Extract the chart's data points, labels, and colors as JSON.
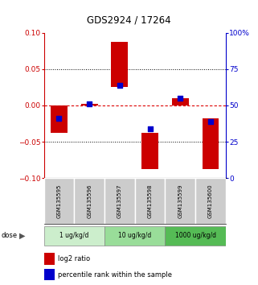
{
  "title": "GDS2924 / 17264",
  "samples": [
    "GSM135595",
    "GSM135596",
    "GSM135597",
    "GSM135598",
    "GSM135599",
    "GSM135600"
  ],
  "bar_bottoms": [
    0,
    0,
    0.025,
    -0.088,
    0,
    -0.088
  ],
  "bar_tops": [
    -0.038,
    0.002,
    0.088,
    -0.038,
    0.01,
    -0.018
  ],
  "blue_y": [
    -0.018,
    0.002,
    0.028,
    -0.032,
    0.01,
    -0.022
  ],
  "ylim_left": [
    -0.1,
    0.1
  ],
  "ylim_right": [
    0,
    100
  ],
  "yticks_left": [
    -0.1,
    -0.05,
    0,
    0.05,
    0.1
  ],
  "yticks_right": [
    0,
    25,
    50,
    75,
    100
  ],
  "hlines_dotted": [
    0.05,
    -0.05
  ],
  "hline_zero_color": "#dd0000",
  "dose_groups": [
    {
      "label": "1 ug/kg/d",
      "cols": [
        0,
        1
      ],
      "color": "#cceecc"
    },
    {
      "label": "10 ug/kg/d",
      "cols": [
        2,
        3
      ],
      "color": "#99dd99"
    },
    {
      "label": "1000 ug/kg/d",
      "cols": [
        4,
        5
      ],
      "color": "#55bb55"
    }
  ],
  "bar_color": "#cc0000",
  "blue_color": "#0000cc",
  "left_axis_color": "#cc0000",
  "right_axis_color": "#0000cc",
  "sample_bg_color": "#cccccc",
  "bar_width": 0.55,
  "blue_size": 18
}
